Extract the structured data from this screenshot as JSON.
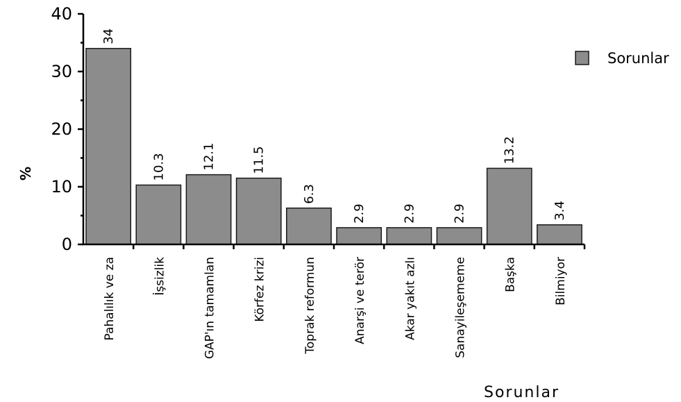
{
  "chart_data": {
    "type": "bar",
    "categories": [
      "Pahalılık ve za",
      "İşsizlik",
      "GAP'ın tamamlan",
      "Körfez krizi",
      "Toprak reformun",
      "Anarşi ve terör",
      "Akar yakıt azlı",
      "Sanayileşememe",
      "Başka",
      "Bilmiyor"
    ],
    "series": [
      {
        "name": "Sorunlar",
        "values": [
          34,
          10.3,
          12.1,
          11.5,
          6.3,
          2.9,
          2.9,
          2.9,
          13.2,
          3.4
        ]
      }
    ],
    "data_labels": [
      "34",
      "10.3",
      "12.1",
      "11.5",
      "6.3",
      "2.9",
      "2.9",
      "2.9",
      "13.2",
      "3.4"
    ],
    "xlabel": "Sorunlar",
    "ylabel": "%",
    "ylim": [
      0,
      40
    ],
    "yticks": [
      0,
      10,
      20,
      30,
      40
    ],
    "grid": false,
    "legend_position": "top-right",
    "bar_color": "#8c8c8c"
  }
}
